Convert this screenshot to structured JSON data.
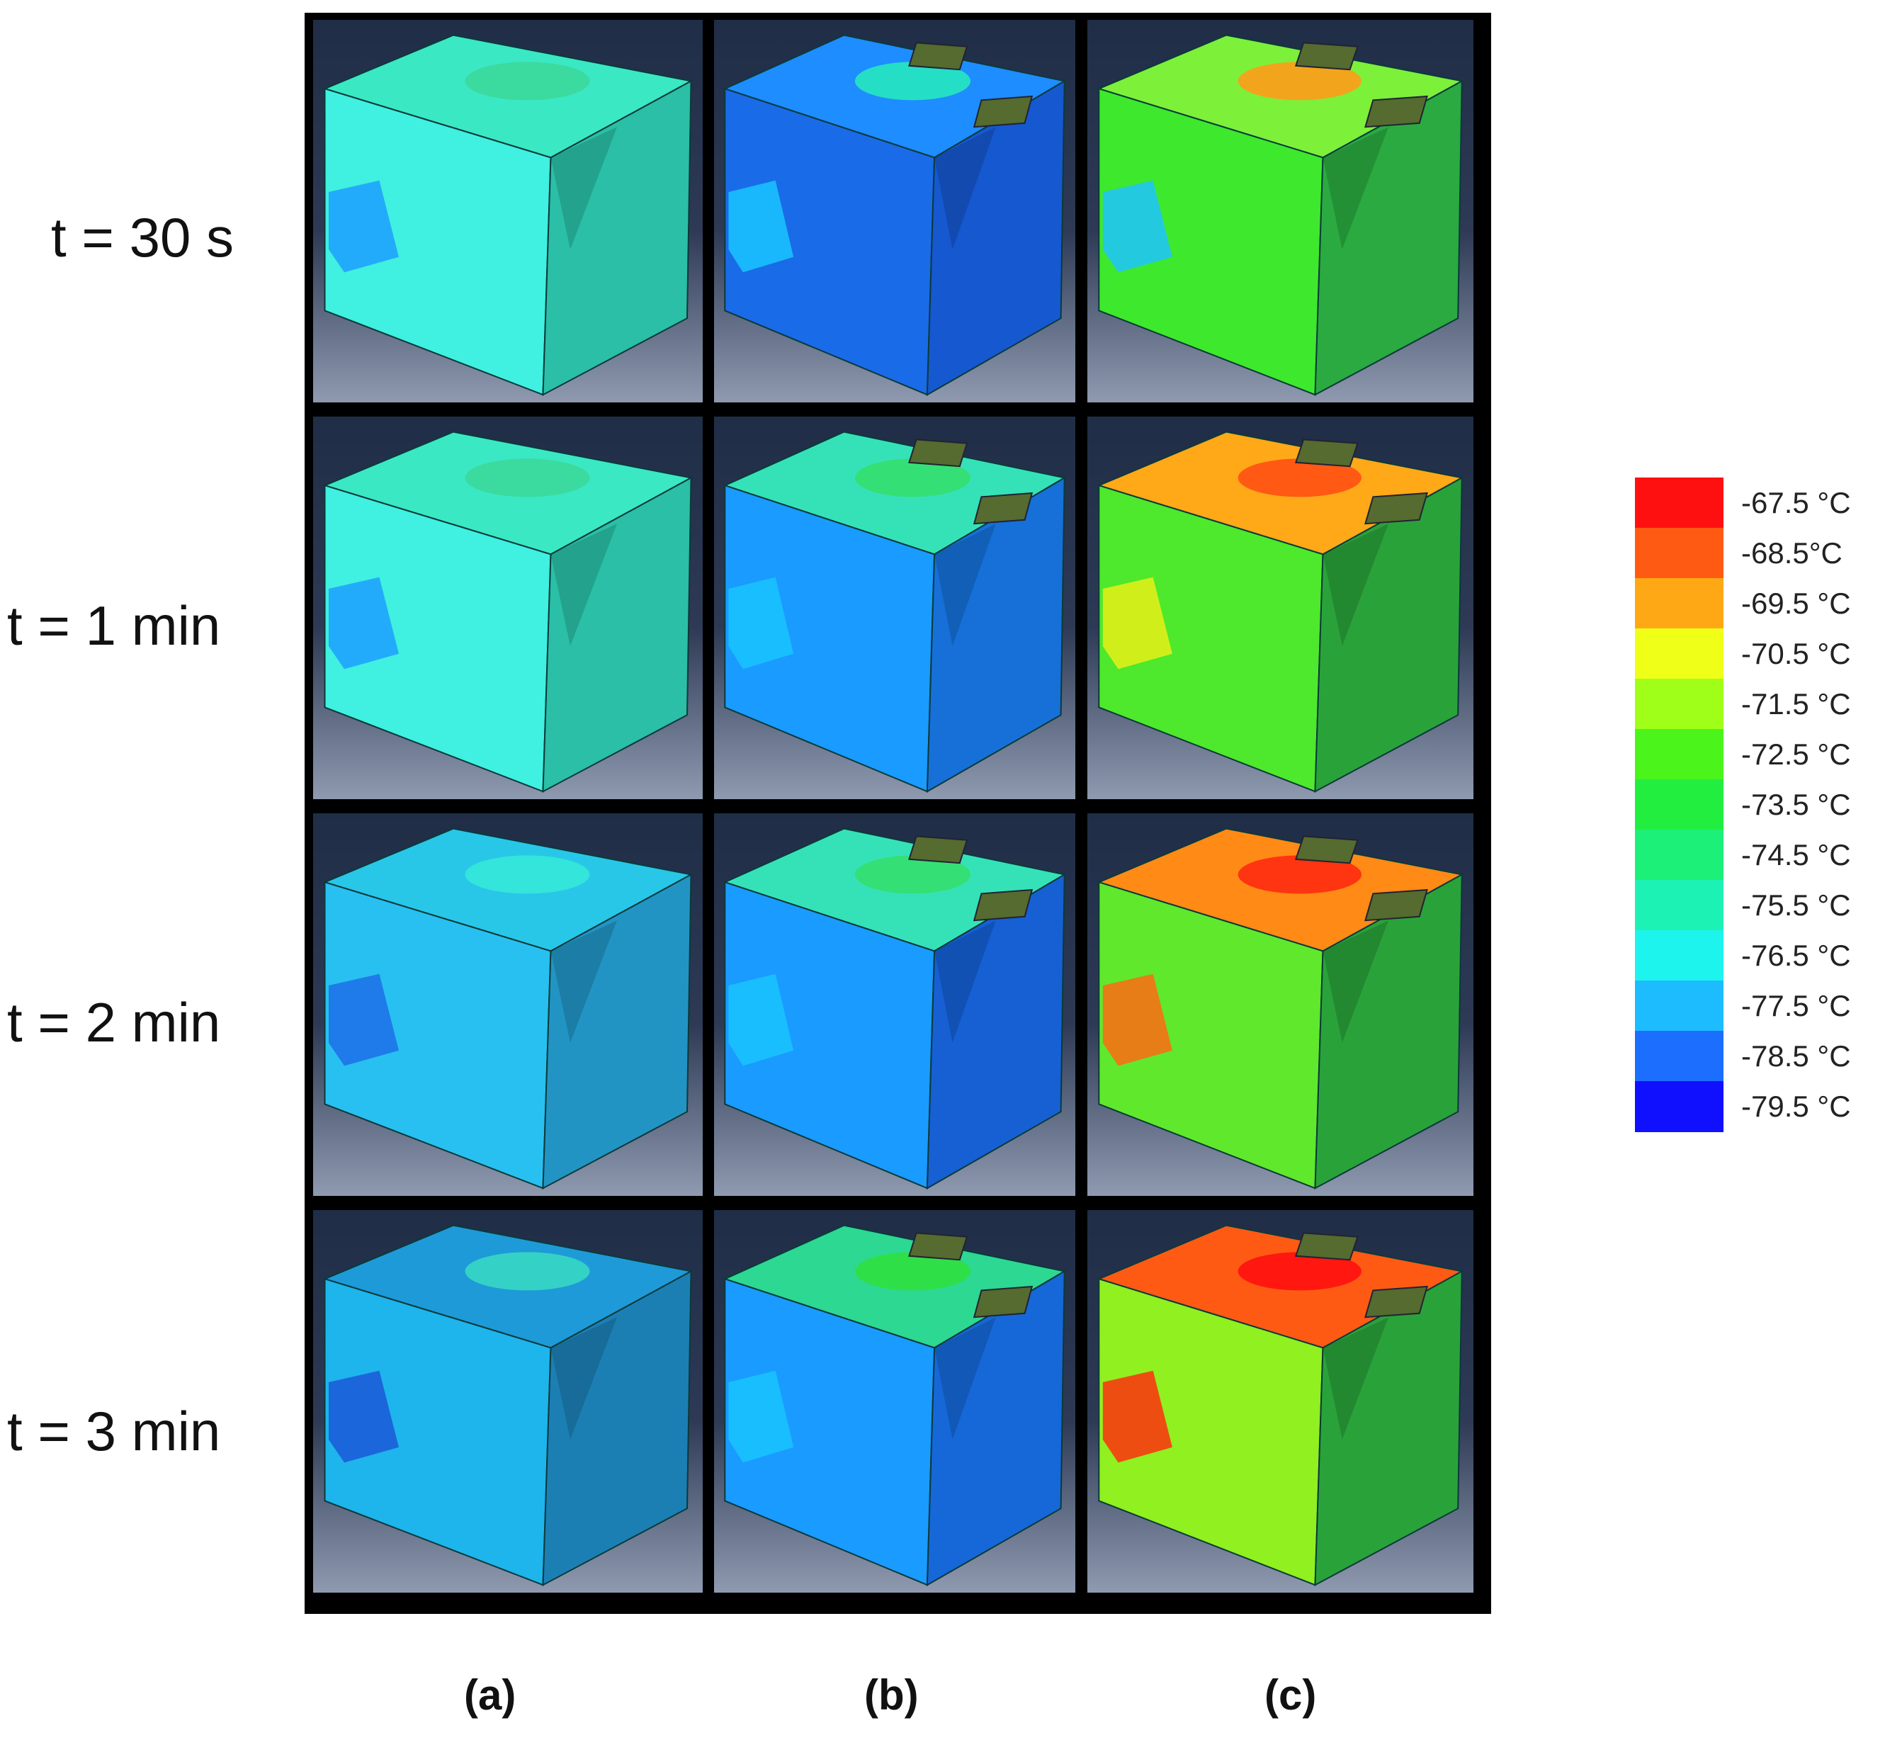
{
  "rows": [
    {
      "label": "t = 30 s"
    },
    {
      "label": "t = 1 min"
    },
    {
      "label": "t = 2 min"
    },
    {
      "label": "t = 3 min"
    }
  ],
  "columns": [
    {
      "label": "(a)",
      "holes": false
    },
    {
      "label": "(b)",
      "holes": true
    },
    {
      "label": "(c)",
      "holes": true
    }
  ],
  "legend": [
    {
      "label": "-67.5 °C",
      "color": "#ff1010"
    },
    {
      "label": "-68.5°C",
      "color": "#ff5a14"
    },
    {
      "label": "-69.5 °C",
      "color": "#ffa816"
    },
    {
      "label": "-70.5 °C",
      "color": "#f0ff18"
    },
    {
      "label": "-71.5 °C",
      "color": "#a0ff18"
    },
    {
      "label": "-72.5 °C",
      "color": "#4bf51c"
    },
    {
      "label": "-73.5 °C",
      "color": "#22ee40"
    },
    {
      "label": "-74.5 °C",
      "color": "#1cf078"
    },
    {
      "label": "-75.5 °C",
      "color": "#1cf2b4"
    },
    {
      "label": "-76.5 °C",
      "color": "#1ef4ee"
    },
    {
      "label": "-77.5 °C",
      "color": "#1cbcff"
    },
    {
      "label": "-78.5 °C",
      "color": "#1c6eff"
    },
    {
      "label": "-79.5 °C",
      "color": "#1010ff"
    }
  ],
  "cube_colors": [
    [
      {
        "top": "#3ae8c4",
        "left": "#40f0e0",
        "right": "#2abfa6",
        "spot": "#3cd89a",
        "corner": "#1e9fff"
      },
      {
        "top": "#1e8dff",
        "left": "#1a6be8",
        "right": "#1658cf",
        "spot": "#25e8bf",
        "corner": "#1ac4ff"
      },
      {
        "top": "#7df03a",
        "left": "#3ee82c",
        "right": "#2aaa40",
        "spot": "#ff9c1a",
        "corner": "#1ec4ff"
      }
    ],
    [
      {
        "top": "#3ae8c4",
        "left": "#40f0e0",
        "right": "#2abfa6",
        "spot": "#3cd89a",
        "corner": "#1e9fff"
      },
      {
        "top": "#35e2b8",
        "left": "#1a9bff",
        "right": "#1670d8",
        "spot": "#34e06e",
        "corner": "#1ac4ff"
      },
      {
        "top": "#ffa818",
        "left": "#4ee82c",
        "right": "#2aa23a",
        "spot": "#ff5014",
        "corner": "#e8f018"
      }
    ],
    [
      {
        "top": "#28c7e8",
        "left": "#28c0f0",
        "right": "#2294c4",
        "spot": "#34e8d8",
        "corner": "#1c6ee8"
      },
      {
        "top": "#35e2b8",
        "left": "#1a9bff",
        "right": "#1660d4",
        "spot": "#34e06e",
        "corner": "#1ac4ff"
      },
      {
        "top": "#ff8a16",
        "left": "#60e82c",
        "right": "#2aa23a",
        "spot": "#ff2a10",
        "corner": "#ff6a14"
      }
    ],
    [
      {
        "top": "#1e9ad8",
        "left": "#1eb4ec",
        "right": "#1c7fb4",
        "spot": "#36d8c4",
        "corner": "#1c58d8"
      },
      {
        "top": "#2cd892",
        "left": "#1a9bff",
        "right": "#1668d8",
        "spot": "#30e040",
        "corner": "#1ac4ff"
      },
      {
        "top": "#ff5a14",
        "left": "#90f020",
        "right": "#2aa23a",
        "spot": "#ff1010",
        "corner": "#ff3010"
      }
    ]
  ]
}
